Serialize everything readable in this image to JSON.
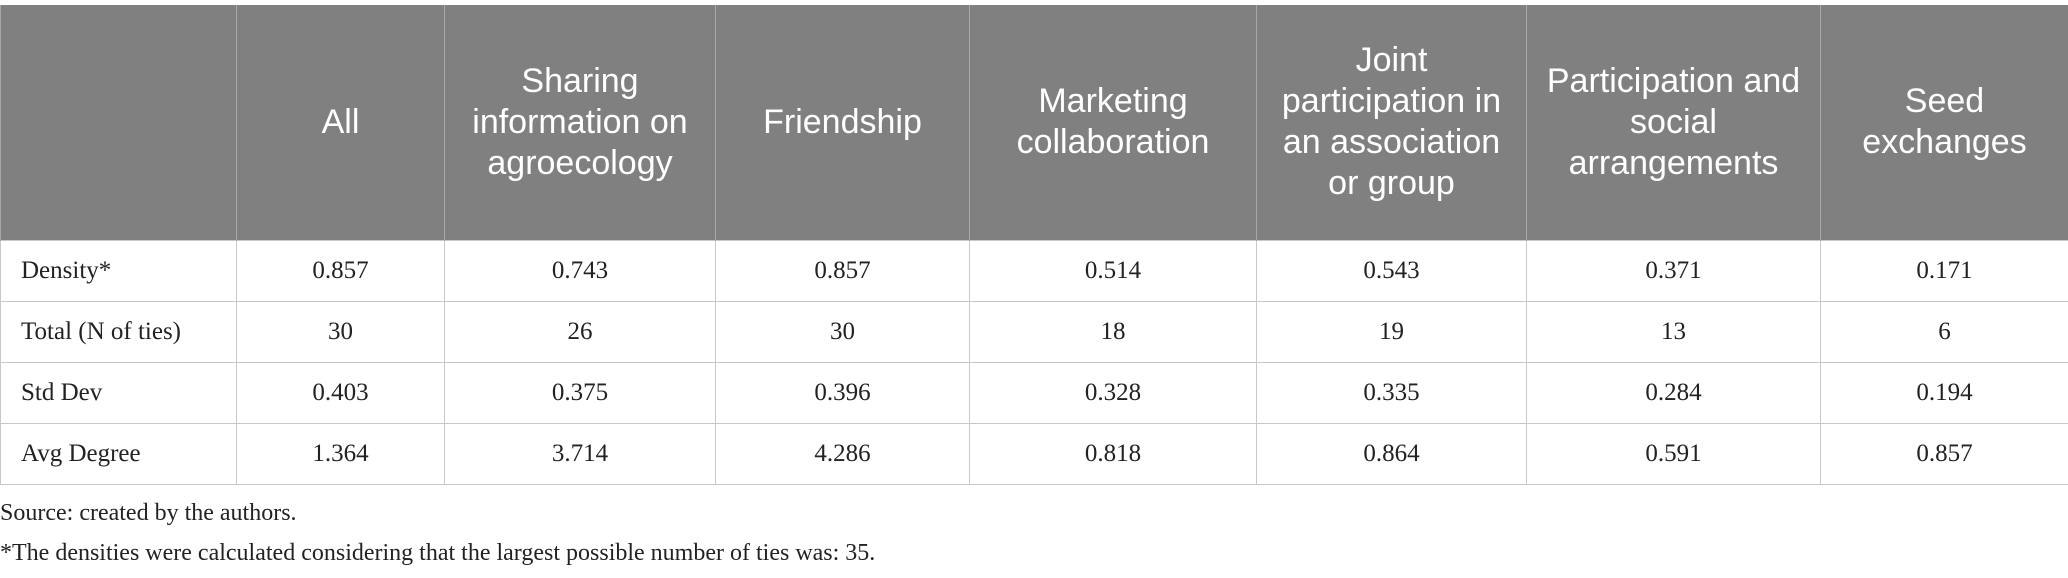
{
  "table": {
    "header": [
      "All",
      "Sharing information on agroecology",
      "Friendship",
      "Marketing collaboration",
      "Joint participation in an association or group",
      "Participation and social arrangements",
      "Seed exchanges"
    ],
    "rows": [
      {
        "label": "Density*",
        "values": [
          0.857,
          0.743,
          0.857,
          0.514,
          0.543,
          0.371,
          0.171
        ]
      },
      {
        "label": "Total (N of ties)",
        "values": [
          30,
          26,
          30,
          18,
          19,
          13,
          6
        ]
      },
      {
        "label": "Std Dev",
        "values": [
          0.403,
          0.375,
          0.396,
          0.328,
          0.335,
          0.284,
          0.194
        ]
      },
      {
        "label": "Avg Degree",
        "values": [
          1.364,
          3.714,
          4.286,
          0.818,
          0.864,
          0.591,
          0.857
        ]
      }
    ]
  },
  "notes": [
    "Source: created by the authors.",
    "*The densities were calculated considering that the largest possible number of ties was: 35."
  ]
}
